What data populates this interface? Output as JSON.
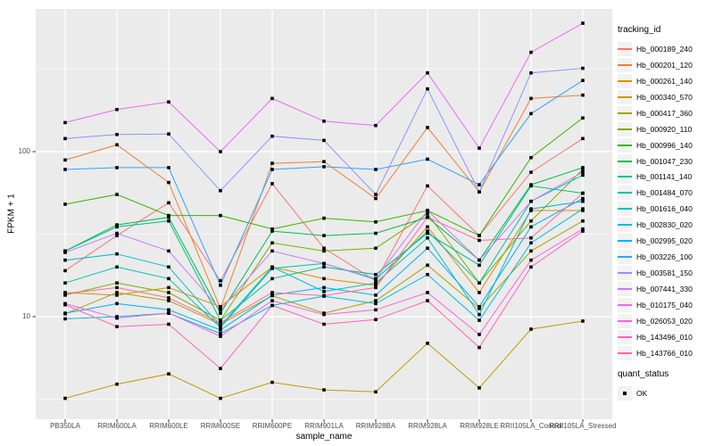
{
  "figure": {
    "background": "#FFFFFF",
    "panel_background": "#EBEBEB",
    "gridline_color": "#FFFFFF",
    "tick_color": "#333333",
    "tick_label_color": "#4D4D4D",
    "marker_color": "#000000"
  },
  "chart_data": {
    "type": "line",
    "title": "",
    "xlabel": "sample_name",
    "ylabel": "FPKM + 1",
    "y_scale": "log10",
    "ylim": [
      2.4,
      720
    ],
    "grid": "on",
    "legend_position": "right",
    "y_ticks": [
      {
        "label": "10",
        "value": 10
      },
      {
        "label": "100",
        "value": 100
      }
    ],
    "y_minor_ticks": [
      3.162,
      31.623,
      316.23
    ],
    "categories": [
      "PB350LA",
      "RRIM600LA",
      "RRIM600LE",
      "RRIM600SE",
      "RRIM600PE",
      "RRIM901LA",
      "RRIM928BA",
      "RRIM928LA",
      "RRIM928LE",
      "RRII105LA_Control",
      "RRII105LA_Stressed"
    ],
    "marker": {
      "shape": "square",
      "color": "#000000"
    },
    "legend": {
      "color_title": "tracking_id",
      "shape_title": "quant_status",
      "shape_items": [
        {
          "label": "OK",
          "shape": "square",
          "color": "#000000"
        }
      ]
    },
    "series": [
      {
        "name": "Hb_000189_240",
        "color": "#F8766D",
        "values": [
          19,
          31,
          49,
          16.5,
          64,
          26,
          16.5,
          62,
          31,
          75,
          120
        ]
      },
      {
        "name": "Hb_000201_120",
        "color": "#EA8331",
        "values": [
          89,
          110,
          65,
          11.2,
          85,
          87,
          52,
          140,
          57,
          210,
          220
        ]
      },
      {
        "name": "Hb_000261_140",
        "color": "#D89000",
        "values": [
          14,
          13.5,
          15,
          11.5,
          20,
          17,
          15.5,
          35,
          14,
          44,
          44
        ]
      },
      {
        "name": "Hb_000340_570",
        "color": "#C09B00",
        "values": [
          3.2,
          3.9,
          4.5,
          3.2,
          4.0,
          3.6,
          3.5,
          6.9,
          3.7,
          8.4,
          9.4
        ]
      },
      {
        "name": "Hb_000417_360",
        "color": "#A3A500",
        "values": [
          10.4,
          14,
          12.5,
          9.0,
          13.4,
          10.5,
          12.5,
          20.5,
          11.2,
          25,
          38
        ]
      },
      {
        "name": "Hb_000920_110",
        "color": "#7CAE00",
        "values": [
          13.5,
          16,
          14,
          9.5,
          28,
          25,
          26,
          42,
          16,
          38,
          78
        ]
      },
      {
        "name": "Hb_000996_140",
        "color": "#39B600",
        "values": [
          48,
          55,
          41,
          41,
          34,
          39.5,
          37.5,
          44,
          31,
          92,
          160
        ]
      },
      {
        "name": "Hb_001047_230",
        "color": "#00BB4E",
        "values": [
          25,
          36,
          40,
          10.5,
          33,
          31,
          32,
          40,
          22,
          63,
          80
        ]
      },
      {
        "name": "Hb_001141_140",
        "color": "#00C087",
        "values": [
          25,
          35,
          38,
          9.5,
          17,
          20,
          18,
          32,
          20.5,
          62,
          56
        ]
      },
      {
        "name": "Hb_001484_070",
        "color": "#00C0AF",
        "values": [
          16,
          20,
          17,
          8.6,
          19.6,
          21,
          16.8,
          33,
          16,
          50,
          72
        ]
      },
      {
        "name": "Hb_001616_040",
        "color": "#00BFC4",
        "values": [
          22,
          24,
          20,
          8.8,
          20,
          14.2,
          16,
          30,
          10.3,
          45,
          50
        ]
      },
      {
        "name": "Hb_002830_020",
        "color": "#00BAE0",
        "values": [
          9.7,
          10,
          10.5,
          7.9,
          11.7,
          13.3,
          12,
          18,
          9.5,
          28,
          45
        ]
      },
      {
        "name": "Hb_002995_020",
        "color": "#00B0F6",
        "values": [
          10.5,
          12,
          11,
          8.3,
          13.5,
          15,
          13.5,
          26,
          11.5,
          35,
          52
        ]
      },
      {
        "name": "Hb_003226_100",
        "color": "#35A2FF",
        "values": [
          78,
          80,
          80,
          15.5,
          78,
          81,
          78,
          90,
          63,
          170,
          270
        ]
      },
      {
        "name": "Hb_003581_150",
        "color": "#9590FF",
        "values": [
          120,
          127,
          128,
          58,
          124,
          117,
          55,
          240,
          57,
          300,
          320
        ]
      },
      {
        "name": "Hb_007441_330",
        "color": "#C77CFF",
        "values": [
          24.5,
          32,
          25,
          11,
          25,
          21,
          17,
          44,
          22,
          50,
          75
        ]
      },
      {
        "name": "Hb_010175_040",
        "color": "#E76BF3",
        "values": [
          150,
          180,
          200,
          100,
          210,
          153,
          144,
          300,
          105,
          400,
          600
        ]
      },
      {
        "name": "Hb_026053_020",
        "color": "#FA62DB",
        "values": [
          12,
          9.8,
          10.5,
          7.6,
          12.5,
          10.3,
          11,
          14,
          7.8,
          22,
          34
        ]
      },
      {
        "name": "Hb_143496_010",
        "color": "#FF62BC",
        "values": [
          11.8,
          8.7,
          9.0,
          4.85,
          11.7,
          9.0,
          9.6,
          12.5,
          6.5,
          20,
          33
        ]
      },
      {
        "name": "Hb_143766_010",
        "color": "#FF6A98",
        "values": [
          13.8,
          15,
          13,
          9.2,
          14,
          13.4,
          15,
          40,
          29,
          30,
          56
        ]
      }
    ]
  }
}
